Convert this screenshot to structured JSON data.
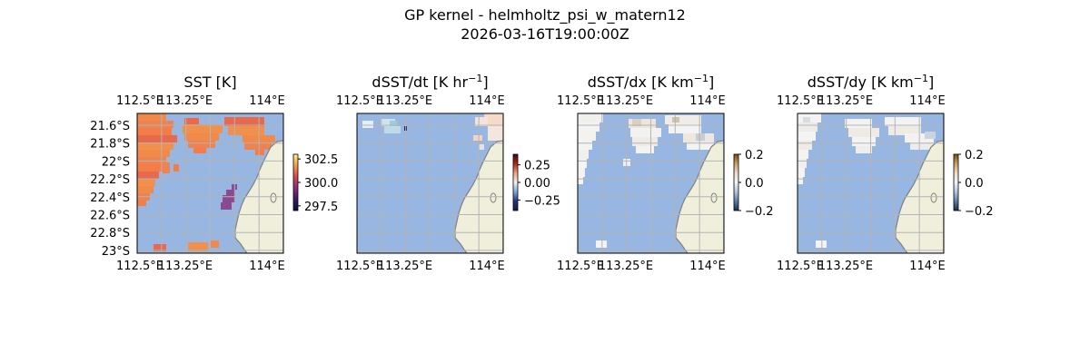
{
  "figure": {
    "title_line1": "GP kernel - helmholtz_psi_w_matern12",
    "title_line2": "2026-03-16T19:00:00Z"
  },
  "colors": {
    "ocean": "#97b6e1",
    "land": "#efefdb",
    "coast": "#808080",
    "grid": "#b4b4b4"
  },
  "chart_data": [
    {
      "type": "heatmap",
      "title_main": "SST [K]",
      "title_sup": "",
      "title_tail": "",
      "x_ticks": [
        "112.5°E",
        "113.25°E",
        "114°E"
      ],
      "y_ticks": [
        "21.6°S",
        "21.8°S",
        "22°S",
        "22.2°S",
        "22.4°S",
        "22.6°S",
        "22.8°S",
        "23°S"
      ],
      "show_y_ticks": true,
      "colormap": "thermal",
      "colorbar_ticks": [
        "302.5",
        "300.0",
        "297.5"
      ],
      "colorbar_range": [
        297,
        303
      ],
      "extent": {
        "lon": [
          112.5,
          114.0
        ],
        "lat": [
          -23.05,
          -21.5
        ]
      }
    },
    {
      "type": "heatmap",
      "title_main": "dSST/dt [K hr",
      "title_sup": "−1",
      "title_tail": "]",
      "x_ticks": [
        "112.5°E",
        "113.25°E",
        "114°E"
      ],
      "y_ticks": [],
      "show_y_ticks": false,
      "colormap": "balance",
      "colorbar_ticks": [
        "0.25",
        "0.00",
        "−0.25"
      ],
      "colorbar_range": [
        -0.4,
        0.4
      ],
      "extent": {
        "lon": [
          112.5,
          114.0
        ],
        "lat": [
          -23.05,
          -21.5
        ]
      }
    },
    {
      "type": "heatmap",
      "title_main": "dSST/dx [K km",
      "title_sup": "−1",
      "title_tail": "]",
      "x_ticks": [
        "112.5°E",
        "113.25°E",
        "114°E"
      ],
      "y_ticks": [],
      "show_y_ticks": false,
      "colormap": "diff",
      "colorbar_ticks": [
        "0.2",
        "0.0",
        "−0.2"
      ],
      "colorbar_range": [
        -0.2,
        0.2
      ],
      "extent": {
        "lon": [
          112.5,
          114.0
        ],
        "lat": [
          -23.05,
          -21.5
        ]
      }
    },
    {
      "type": "heatmap",
      "title_main": "dSST/dy [K km",
      "title_sup": "−1",
      "title_tail": "]",
      "x_ticks": [
        "112.5°E",
        "113.25°E",
        "114°E"
      ],
      "y_ticks": [],
      "show_y_ticks": false,
      "colormap": "diff",
      "colorbar_ticks": [
        "0.2",
        "0.0",
        "−0.2"
      ],
      "colorbar_range": [
        -0.2,
        0.2
      ],
      "extent": {
        "lon": [
          112.5,
          114.0
        ],
        "lat": [
          -23.05,
          -21.5
        ]
      }
    }
  ]
}
